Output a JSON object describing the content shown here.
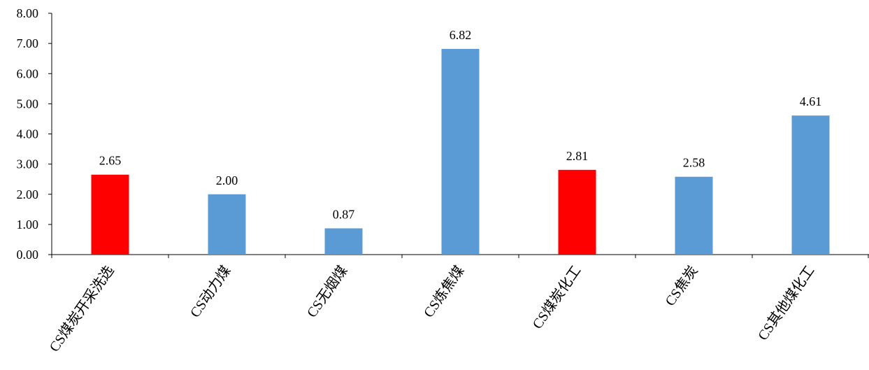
{
  "chart_data": {
    "type": "bar",
    "categories": [
      "CS煤炭开采洗选",
      "CS动力煤",
      "CS无烟煤",
      "CS炼焦煤",
      "CS煤炭化工",
      "CS焦炭",
      "CS其他煤化工"
    ],
    "values": [
      2.65,
      2.0,
      0.87,
      6.82,
      2.81,
      2.58,
      4.61
    ],
    "data_labels": [
      "2.65",
      "2.00",
      "0.87",
      "6.82",
      "2.81",
      "2.58",
      "4.61"
    ],
    "bar_colors": [
      "#ff0000",
      "#5b9bd5",
      "#5b9bd5",
      "#5b9bd5",
      "#ff0000",
      "#5b9bd5",
      "#5b9bd5"
    ],
    "title": "",
    "xlabel": "",
    "ylabel": "",
    "ylim": [
      0,
      8
    ],
    "yticks": [
      "0.00",
      "1.00",
      "2.00",
      "3.00",
      "4.00",
      "5.00",
      "6.00",
      "7.00",
      "8.00"
    ],
    "grid": false,
    "legend": "none"
  }
}
